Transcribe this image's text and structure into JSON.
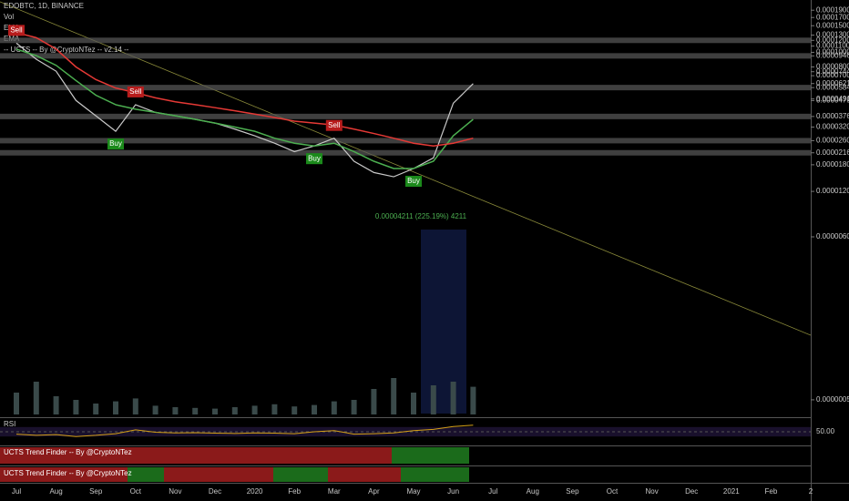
{
  "chart_data": {
    "type": "line",
    "title": "EDOBTC, 1D, BINANCE",
    "categories": [
      "Jul",
      null,
      "Aug",
      null,
      "Sep",
      null,
      "Oct",
      null,
      "Nov",
      null,
      "Dec",
      null,
      "2020",
      null,
      "Feb",
      null,
      "Mar",
      null,
      "Apr",
      null,
      "May",
      null,
      "Jun",
      null,
      "Jul",
      null,
      "Aug",
      null,
      "Sep",
      null,
      "Oct",
      null,
      "Nov",
      null,
      "Dec",
      null,
      "2021",
      null,
      "Feb",
      null,
      "2",
      null
    ],
    "values": [
      0.000115,
      9e-05,
      7.5e-05,
      4.8e-05,
      3.8e-05,
      3e-05,
      4.5e-05,
      4e-05,
      3.8e-05,
      3.6e-05,
      3.4e-05,
      3.1e-05,
      2.8e-05,
      2.5e-05,
      2.2e-05,
      2.4e-05,
      2.7e-05,
      1.9e-05,
      1.6e-05,
      1.5e-05,
      1.7e-05,
      2e-05,
      4.6e-05,
      6.2e-05,
      null,
      null,
      null,
      null,
      null,
      null,
      null,
      null,
      null,
      null,
      null,
      null,
      null,
      null,
      null,
      null,
      null,
      null
    ],
    "color": "#c8c8c8",
    "series": [
      {
        "name": "EMA",
        "color": "#4caf50",
        "values": [
          0.000105,
          9.5e-05,
          8.2e-05,
          6.5e-05,
          5.2e-05,
          4.5e-05,
          4.2e-05,
          4e-05,
          3.8e-05,
          3.6e-05,
          3.4e-05,
          3.2e-05,
          3e-05,
          2.7e-05,
          2.5e-05,
          2.4e-05,
          2.5e-05,
          2.2e-05,
          1.9e-05,
          1.7e-05,
          1.7e-05,
          1.9e-05,
          2.8e-05,
          3.6e-05,
          null,
          null,
          null,
          null,
          null,
          null,
          null,
          null,
          null,
          null,
          null,
          null,
          null,
          null,
          null,
          null,
          null,
          null
        ]
      },
      {
        "name": "EMA",
        "color": "#e53935",
        "values": [
          0.000135,
          0.000125,
          0.000105,
          8e-05,
          6.6e-05,
          5.8e-05,
          5.4e-05,
          5e-05,
          4.7e-05,
          4.5e-05,
          4.3e-05,
          4.1e-05,
          3.9e-05,
          3.7e-05,
          3.5e-05,
          3.4e-05,
          3.3e-05,
          3.1e-05,
          2.9e-05,
          2.7e-05,
          2.5e-05,
          2.4e-05,
          2.5e-05,
          2.7e-05,
          null,
          null,
          null,
          null,
          null,
          null,
          null,
          null,
          null,
          null,
          null,
          null,
          null,
          null,
          null,
          null,
          null,
          null
        ]
      }
    ],
    "volume": {
      "name": "Vol",
      "color": "#3a4a4a",
      "values": [
        30,
        45,
        25,
        20,
        15,
        18,
        22,
        12,
        10,
        9,
        8,
        10,
        12,
        14,
        11,
        13,
        18,
        20,
        35,
        50,
        30,
        40,
        45,
        38,
        null,
        null,
        null,
        null,
        null,
        null,
        null,
        null,
        null,
        null,
        null,
        null,
        null,
        null,
        null,
        null,
        null,
        null
      ]
    },
    "signals": {
      "name": "-- UCTS -- By @CryptoNTez -- v2.14 --",
      "items": [
        {
          "label": "Sell",
          "index": 0
        },
        {
          "label": "Buy",
          "index": 5
        },
        {
          "label": "Sell",
          "index": 6
        },
        {
          "label": "Buy",
          "index": 15
        },
        {
          "label": "Sell",
          "index": 16
        },
        {
          "label": "Buy",
          "index": 20
        }
      ]
    },
    "annotation": "0.00004211 (225.19%) 4211",
    "zones": [
      0.00012,
      9.469e-05,
      5.84e-05,
      3.76e-05,
      2.6e-05,
      2.161e-05
    ],
    "ylim": [
      4e-07,
      0.00021
    ],
    "log_scale": true,
    "yticks": [
      {
        "value": 0.00019,
        "label": "0.00019000"
      },
      {
        "value": 0.00017,
        "label": "0.00017000"
      },
      {
        "value": 0.00015,
        "label": "0.00015000"
      },
      {
        "value": 0.00013,
        "label": "0.00013000"
      },
      {
        "value": 0.00012,
        "label": "0.00012000"
      },
      {
        "value": 0.00011,
        "label": "0.00011000"
      },
      {
        "value": 0.0001,
        "label": "0.00010000"
      },
      {
        "value": 9.469e-05,
        "label": "0.00009469"
      },
      {
        "value": 8e-05,
        "label": "0.00008000"
      },
      {
        "value": 7.44e-05,
        "label": "0.00007440"
      },
      {
        "value": 7e-05,
        "label": "0.00007000"
      },
      {
        "value": 6.21e-05,
        "label": "0.00006210"
      },
      {
        "value": 5.84e-05,
        "label": "0.00005840"
      },
      {
        "value": 4.91e-05,
        "label": "0.00004910"
      },
      {
        "value": 4.79e-05,
        "label": "0.00004790"
      },
      {
        "value": 3.76e-05,
        "label": "0.00003760"
      },
      {
        "value": 3.2e-05,
        "label": "0.00003200"
      },
      {
        "value": 2.6e-05,
        "label": "0.00002600"
      },
      {
        "value": 2.161e-05,
        "label": "0.00002161"
      },
      {
        "value": 1.8e-05,
        "label": "0.00001800"
      },
      {
        "value": 1.2e-05,
        "label": "0.00001200"
      },
      {
        "value": 6e-06,
        "label": "0.00000600"
      },
      {
        "value": 5e-07,
        "label": "0.00000050"
      }
    ],
    "rsi": {
      "name": "RSI",
      "color": "#d4a017",
      "values": [
        40,
        35,
        38,
        30,
        35,
        42,
        58,
        48,
        45,
        46,
        44,
        43,
        45,
        44,
        42,
        50,
        55,
        40,
        42,
        45,
        55,
        60,
        72,
        78,
        null,
        null,
        null,
        null,
        null,
        null,
        null,
        null,
        null,
        null,
        null,
        null,
        null,
        null,
        null,
        null,
        null,
        null
      ],
      "ylim": [
        0,
        100
      ],
      "yticks": [
        {
          "value": 50,
          "label": "50.00"
        }
      ]
    },
    "panes": [
      "UCTS Trend Finder -- By @CryptoNTez",
      "UCTS Trend Finder -- By @CryptoNTez"
    ]
  }
}
